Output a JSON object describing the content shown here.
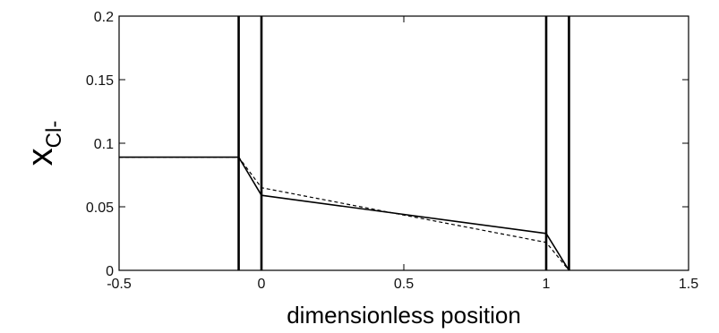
{
  "chart_data": {
    "type": "line",
    "title": "",
    "xlabel": "dimensionless position",
    "ylabel": {
      "main": "x",
      "sub": "Cl-"
    },
    "xlim": [
      -0.5,
      1.5
    ],
    "ylim": [
      0,
      0.2
    ],
    "xticks": [
      -0.5,
      0,
      0.5,
      1,
      1.5
    ],
    "xtick_labels": [
      "-0.5",
      "0",
      "0.5",
      "1",
      "1.5"
    ],
    "yticks": [
      0,
      0.05,
      0.1,
      0.15,
      0.2
    ],
    "ytick_labels": [
      "0",
      "0.05",
      "0.1",
      "0.15",
      "0.2"
    ],
    "grid": false,
    "boundaries": [
      -0.08,
      0,
      1,
      1.08
    ],
    "series": [
      {
        "style": "solid",
        "color": "#000000",
        "x": [
          -0.5,
          -0.08,
          0,
          1,
          1.08
        ],
        "y": [
          0.089,
          0.089,
          0.059,
          0.029,
          0
        ]
      },
      {
        "style": "dashed",
        "color": "#000000",
        "x": [
          -0.5,
          -0.08,
          0,
          1,
          1.08
        ],
        "y": [
          0.089,
          0.089,
          0.065,
          0.022,
          0
        ]
      }
    ]
  }
}
